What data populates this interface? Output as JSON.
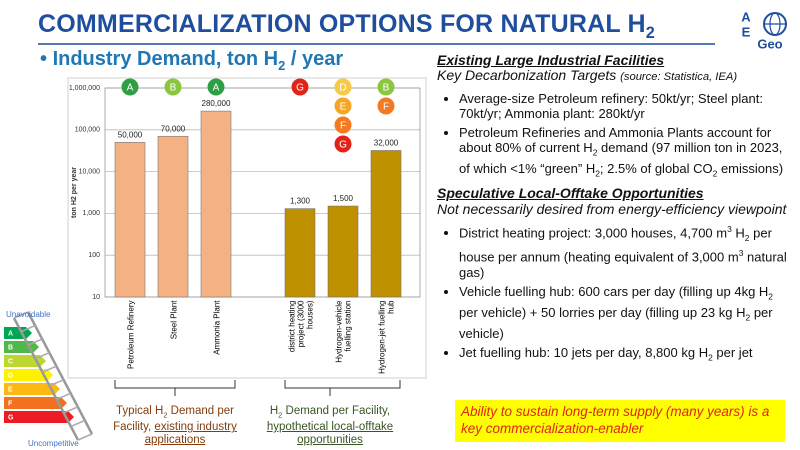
{
  "title": [
    "COMMERCIALIZATION OPTIONS FOR NATURAL H",
    {
      "text": "2",
      "style": "sub"
    }
  ],
  "logo": {
    "a": "A",
    "e": "E",
    "geo": "Geo"
  },
  "subtitle": [
    "Industry Demand, ton H",
    {
      "text": "2",
      "style": "sub"
    },
    " / year"
  ],
  "chart_data": {
    "type": "bar",
    "categories": [
      "Petroleum Refinery",
      "Steel Plant",
      "Ammonia Plant",
      "district heating project (3000 houses)",
      "Hydrogen-vehicle fuelling station",
      "Hydrogen-jet fuelling hub"
    ],
    "values": [
      50000,
      70000,
      280000,
      1300,
      1500,
      32000
    ],
    "value_labels": [
      "50,000",
      "70,000",
      "280,000",
      "1,300",
      "1,500",
      "32,000"
    ],
    "colors": [
      "#f4b183",
      "#f4b183",
      "#f4b183",
      "#bf9000",
      "#bf9000",
      "#bf9000"
    ],
    "y_label": "ton H2 per year",
    "log_scale": true,
    "ylim": [
      10,
      1000000
    ],
    "yticks": [
      10,
      100,
      {
        "value": 1000,
        "label": "1,000"
      },
      {
        "value": 10000,
        "label": "10,000"
      },
      {
        "value": 100000,
        "label": "100,000"
      },
      {
        "value": 1000000,
        "label": "1,000,000"
      }
    ],
    "grid": true,
    "badges": [
      [
        "A"
      ],
      [
        "B"
      ],
      [
        "A"
      ],
      [
        "G"
      ],
      [
        "D",
        "E",
        "F",
        "G"
      ],
      [
        "B",
        "F"
      ]
    ],
    "badge_colors": {
      "A": "#2ea043",
      "B": "#8cc63f",
      "D": "#f7c948",
      "E": "#f5a623",
      "F": "#f47920",
      "G": "#e2231a"
    }
  },
  "captions": [
    [
      "Typical H",
      {
        "text": "2",
        "style": "sub"
      },
      " Demand per Facility, ",
      {
        "text": "existing industry applications",
        "style": "u"
      }
    ],
    [
      "H",
      {
        "text": "2",
        "style": "sub"
      },
      " Demand per Facility, ",
      {
        "text": "hypothetical local-offtake opportunities",
        "style": "u"
      }
    ]
  ],
  "energy_label": {
    "top": "Unavoidable",
    "bottom": "Uncompetitive",
    "grades": [
      "A",
      "B",
      "C",
      "D",
      "E",
      "F",
      "G"
    ],
    "grade_colors": [
      "#00a651",
      "#50b848",
      "#bed630",
      "#fff200",
      "#fdb913",
      "#f37021",
      "#ed1c24"
    ]
  },
  "sections": [
    {
      "heading": "Existing Large Industrial Facilities",
      "subheading": [
        "Key Decarbonization Targets ",
        {
          "text": "(source: Statistica, IEA)",
          "style": "small"
        }
      ],
      "bullets": [
        [
          "Average-size Petroleum refinery: 50kt/yr; Steel plant: 70kt/yr; Ammonia plant: 280kt/yr"
        ],
        [
          "Petroleum Refineries and Ammonia Plants account for about 80% of current H",
          {
            "text": "2",
            "style": "sub"
          },
          " demand (97 million ton in 2023, of which <1% “green” H",
          {
            "text": "2",
            "style": "sub"
          },
          "; 2.5% of global CO",
          {
            "text": "2",
            "style": "sub"
          },
          " emissions)"
        ]
      ]
    },
    {
      "heading": "Speculative Local-Offtake Opportunities",
      "subheading": [
        "Not necessarily desired from energy-efficiency viewpoint"
      ],
      "bullets": [
        [
          "District heating project: 3,000 houses, 4,700 m",
          {
            "text": "3",
            "style": "sup"
          },
          " H",
          {
            "text": "2",
            "style": "sub"
          },
          " per house per annum (heating equivalent of 3,000 m",
          {
            "text": "3",
            "style": "sup"
          },
          " natural gas)"
        ],
        [
          "Vehicle fuelling hub: 600 cars per day (filling up 4kg H",
          {
            "text": "2",
            "style": "sub"
          },
          " per vehicle) + 50 lorries per day (filling up 23 kg H",
          {
            "text": "2",
            "style": "sub"
          },
          " per vehicle)"
        ],
        [
          "Jet fuelling hub: 10 jets per day, 8,800 kg H",
          {
            "text": "2",
            "style": "sub"
          },
          " per jet"
        ]
      ]
    }
  ],
  "callout": "Ability to sustain long-term supply (many years) is a key commercialization-enabler"
}
